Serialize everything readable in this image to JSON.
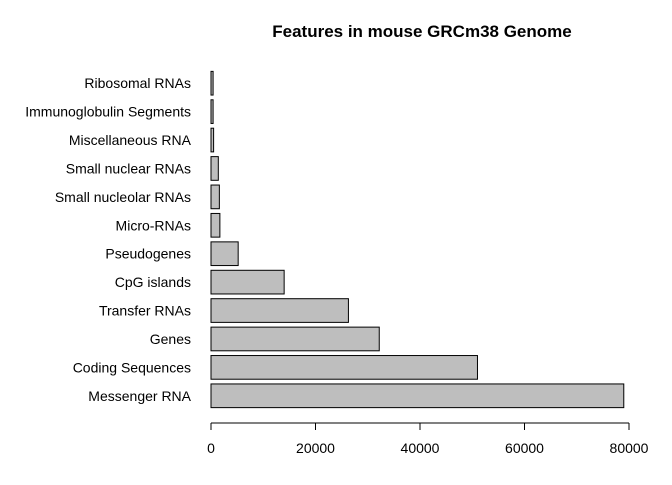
{
  "chart_data": {
    "type": "bar",
    "orientation": "horizontal",
    "title": "Features in mouse GRCm38 Genome",
    "xlabel": "",
    "ylabel": "",
    "categories": [
      "Messenger RNA",
      "Coding Sequences",
      "Genes",
      "Transfer RNAs",
      "CpG islands",
      "Pseudogenes",
      "Micro-RNAs",
      "Small nucleolar RNAs",
      "Small nuclear RNAs",
      "Miscellaneous RNA",
      "Immunoglobulin Segments",
      "Ribosomal RNAs"
    ],
    "values": [
      79000,
      51000,
      32200,
      26300,
      14000,
      5200,
      1700,
      1600,
      1400,
      500,
      400,
      400
    ],
    "xlim": [
      0,
      80000
    ],
    "xticks": [
      0,
      20000,
      40000,
      60000,
      80000
    ],
    "xtick_labels": [
      "0",
      "20000",
      "40000",
      "60000",
      "80000"
    ],
    "bar_color": "#bebebe",
    "bar_edge_color": "#000000",
    "grid": false,
    "legend": "none"
  }
}
